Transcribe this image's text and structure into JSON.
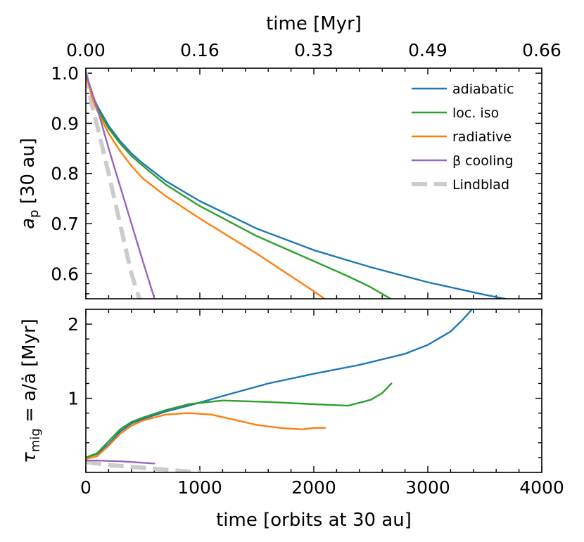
{
  "chart_data": [
    {
      "type": "line",
      "panel": "top",
      "xlabel": "time [orbits at 30 au]",
      "top_xlabel": "time [Myr]",
      "top_xticks": [
        "0.00",
        "0.16",
        "0.33",
        "0.49",
        "0.66"
      ],
      "ylabel_main": "a",
      "ylabel_sub": "p",
      "ylabel_rest": " [30 au]",
      "xlim": [
        0,
        4000
      ],
      "ylim": [
        0.55,
        1.01
      ],
      "yticks": [
        0.6,
        0.7,
        0.8,
        0.9,
        1.0
      ],
      "ytick_labels": [
        "0.6",
        "0.7",
        "0.8",
        "0.9",
        "1.0"
      ],
      "legend_position": "top-right",
      "series": [
        {
          "name": "adiabatic",
          "color": "#1f77b4",
          "dashed": false,
          "x": [
            0,
            50,
            100,
            200,
            300,
            400,
            500,
            700,
            1000,
            1500,
            2000,
            2500,
            3000,
            3500,
            3700
          ],
          "y": [
            1.0,
            0.96,
            0.935,
            0.895,
            0.865,
            0.84,
            0.82,
            0.785,
            0.745,
            0.69,
            0.647,
            0.613,
            0.583,
            0.558,
            0.549
          ]
        },
        {
          "name": "loc. iso",
          "color": "#2ca02c",
          "dashed": false,
          "x": [
            0,
            50,
            100,
            200,
            300,
            400,
            500,
            700,
            1000,
            1500,
            2000,
            2300,
            2500,
            2680
          ],
          "y": [
            1.0,
            0.958,
            0.93,
            0.89,
            0.86,
            0.835,
            0.815,
            0.778,
            0.735,
            0.675,
            0.625,
            0.595,
            0.573,
            0.549
          ]
        },
        {
          "name": "radiative",
          "color": "#ff7f0e",
          "dashed": false,
          "x": [
            0,
            50,
            100,
            200,
            300,
            400,
            500,
            700,
            1000,
            1500,
            1800,
            2000,
            2100
          ],
          "y": [
            1.0,
            0.955,
            0.925,
            0.88,
            0.845,
            0.815,
            0.79,
            0.755,
            0.71,
            0.64,
            0.595,
            0.565,
            0.549
          ]
        },
        {
          "name": "β cooling",
          "color": "#9467bd",
          "dashed": false,
          "x": [
            0,
            100,
            200,
            300,
            400,
            500,
            600
          ],
          "y": [
            1.0,
            0.93,
            0.85,
            0.775,
            0.7,
            0.625,
            0.552
          ]
        },
        {
          "name": "Lindblad",
          "color": "#cccccc",
          "dashed": true,
          "x": [
            0,
            50,
            100,
            200,
            300,
            400,
            470
          ],
          "y": [
            1.0,
            0.94,
            0.895,
            0.8,
            0.7,
            0.6,
            0.55
          ]
        }
      ]
    },
    {
      "type": "line",
      "panel": "bottom",
      "xlabel": "time [orbits at 30 au]",
      "ylabel_main": "τ",
      "ylabel_sub": "mig",
      "ylabel_rest": " = a/ȧ [Myr]",
      "xlim": [
        0,
        4000
      ],
      "ylim": [
        0,
        2.2
      ],
      "yticks": [
        1,
        2
      ],
      "ytick_labels": [
        "1",
        "2"
      ],
      "xticks": [
        0,
        1000,
        2000,
        3000,
        4000
      ],
      "xtick_labels": [
        "0",
        "1000",
        "2000",
        "3000",
        "4000"
      ],
      "series": [
        {
          "name": "adiabatic",
          "color": "#1f77b4",
          "dashed": false,
          "x": [
            0,
            100,
            200,
            300,
            400,
            500,
            700,
            900,
            1200,
            1600,
            2000,
            2400,
            2800,
            3000,
            3200,
            3300,
            3400
          ],
          "y": [
            0.2,
            0.25,
            0.38,
            0.55,
            0.66,
            0.72,
            0.82,
            0.9,
            1.03,
            1.2,
            1.33,
            1.45,
            1.6,
            1.72,
            1.9,
            2.05,
            2.22
          ]
        },
        {
          "name": "loc. iso",
          "color": "#2ca02c",
          "dashed": false,
          "x": [
            0,
            100,
            200,
            300,
            400,
            500,
            700,
            900,
            1200,
            1600,
            2000,
            2300,
            2500,
            2600,
            2680
          ],
          "y": [
            0.2,
            0.26,
            0.42,
            0.58,
            0.68,
            0.74,
            0.84,
            0.92,
            0.97,
            0.95,
            0.92,
            0.9,
            0.98,
            1.07,
            1.2
          ]
        },
        {
          "name": "radiative",
          "color": "#ff7f0e",
          "dashed": false,
          "x": [
            0,
            100,
            200,
            300,
            400,
            500,
            700,
            900,
            1100,
            1300,
            1500,
            1700,
            1900,
            2000,
            2100
          ],
          "y": [
            0.18,
            0.22,
            0.36,
            0.52,
            0.63,
            0.7,
            0.78,
            0.8,
            0.78,
            0.71,
            0.64,
            0.6,
            0.58,
            0.6,
            0.6
          ]
        },
        {
          "name": "β cooling",
          "color": "#9467bd",
          "dashed": false,
          "x": [
            0,
            100,
            200,
            300,
            400,
            500,
            600
          ],
          "y": [
            0.16,
            0.16,
            0.155,
            0.15,
            0.14,
            0.13,
            0.12
          ]
        },
        {
          "name": "Lindblad",
          "color": "#cccccc",
          "dashed": true,
          "x": [
            0,
            200,
            400,
            600,
            800,
            1000
          ],
          "y": [
            0.14,
            0.1,
            0.075,
            0.05,
            0.025,
            0.0
          ]
        }
      ]
    }
  ]
}
